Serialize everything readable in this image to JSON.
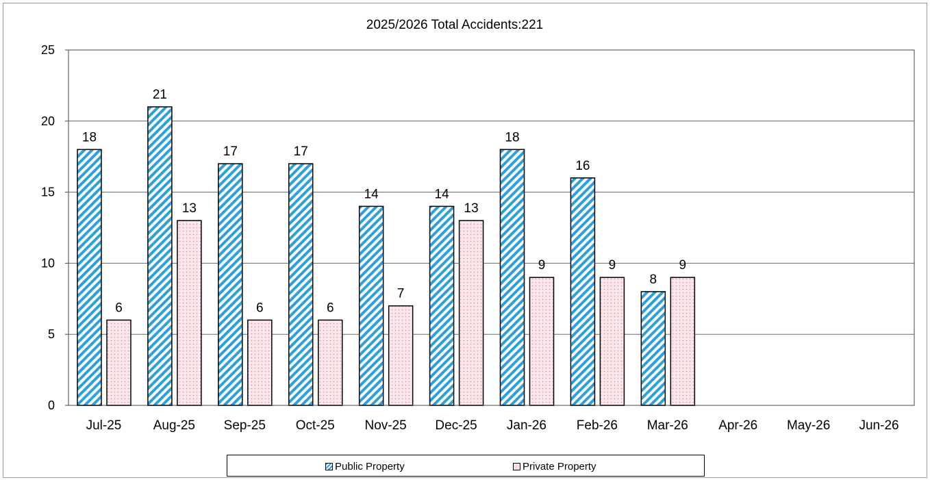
{
  "chart_data": {
    "type": "bar",
    "title": "2025/2026 Total Accidents:221",
    "xlabel": "",
    "ylabel": "",
    "ylim": [
      0,
      25
    ],
    "yticks": [
      0,
      5,
      10,
      15,
      20,
      25
    ],
    "grid": true,
    "legend_position": "bottom",
    "categories": [
      "Jul-25",
      "Aug-25",
      "Sep-25",
      "Oct-25",
      "Nov-25",
      "Dec-25",
      "Jan-26",
      "Feb-26",
      "Mar-26",
      "Apr-26",
      "May-26",
      "Jun-26"
    ],
    "series": [
      {
        "name": "Public Property",
        "values": [
          18,
          21,
          17,
          17,
          14,
          14,
          18,
          16,
          8,
          null,
          null,
          null
        ],
        "color": "#2aa0dc",
        "pattern": "diagonal-stripes"
      },
      {
        "name": "Private Property",
        "values": [
          6,
          13,
          6,
          6,
          7,
          13,
          9,
          9,
          9,
          null,
          null,
          null
        ],
        "color": "#f9dde3",
        "pattern": "dots"
      }
    ]
  }
}
